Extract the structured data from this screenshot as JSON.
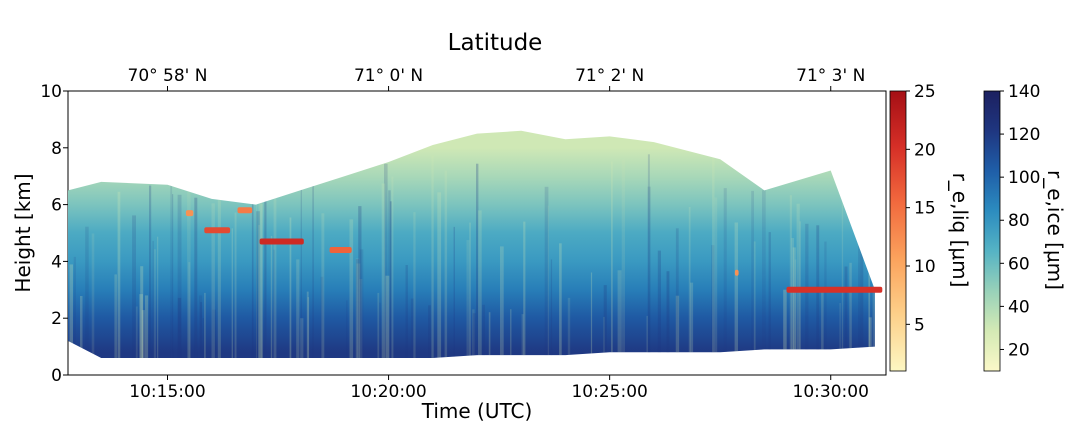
{
  "chart_data": {
    "type": "heatmap",
    "title": "Latitude",
    "xlabel": "Time (UTC)",
    "ylabel": "Height [km]",
    "xlim": [
      "10:12:45",
      "10:31:15"
    ],
    "ylim": [
      0,
      10
    ],
    "x_ticks": [
      "10:15:00",
      "10:20:00",
      "10:25:00",
      "10:30:00"
    ],
    "y_ticks": [
      0,
      2,
      4,
      6,
      8,
      10
    ],
    "top_axis_ticks": [
      "70° 58' N",
      "71° 0' N",
      "71° 2' N",
      "71° 3' N"
    ],
    "cloud_extent": [
      {
        "time": "10:12:45",
        "base_km": 1.2,
        "top_km": 6.5
      },
      {
        "time": "10:13:30",
        "base_km": 0.6,
        "top_km": 6.8
      },
      {
        "time": "10:15:00",
        "base_km": 0.6,
        "top_km": 6.7
      },
      {
        "time": "10:16:00",
        "base_km": 0.6,
        "top_km": 6.2
      },
      {
        "time": "10:17:00",
        "base_km": 0.6,
        "top_km": 6.0
      },
      {
        "time": "10:18:00",
        "base_km": 0.6,
        "top_km": 6.5
      },
      {
        "time": "10:19:00",
        "base_km": 0.6,
        "top_km": 7.0
      },
      {
        "time": "10:20:00",
        "base_km": 0.6,
        "top_km": 7.5
      },
      {
        "time": "10:21:00",
        "base_km": 0.6,
        "top_km": 8.1
      },
      {
        "time": "10:22:00",
        "base_km": 0.7,
        "top_km": 8.5
      },
      {
        "time": "10:23:00",
        "base_km": 0.7,
        "top_km": 8.6
      },
      {
        "time": "10:24:00",
        "base_km": 0.7,
        "top_km": 8.3
      },
      {
        "time": "10:25:00",
        "base_km": 0.8,
        "top_km": 8.4
      },
      {
        "time": "10:26:00",
        "base_km": 0.8,
        "top_km": 8.2
      },
      {
        "time": "10:27:30",
        "base_km": 0.8,
        "top_km": 7.6
      },
      {
        "time": "10:28:30",
        "base_km": 0.9,
        "top_km": 6.5
      },
      {
        "time": "10:30:00",
        "base_km": 0.9,
        "top_km": 7.2
      },
      {
        "time": "10:31:00",
        "base_km": 1.0,
        "top_km": 3.0
      }
    ],
    "ice_column_profile": [
      {
        "height_km": 0.8,
        "re_ice_um": 120
      },
      {
        "height_km": 2.0,
        "re_ice_um": 105
      },
      {
        "height_km": 3.0,
        "re_ice_um": 90
      },
      {
        "height_km": 4.0,
        "re_ice_um": 78
      },
      {
        "height_km": 5.0,
        "re_ice_um": 70
      },
      {
        "height_km": 6.0,
        "re_ice_um": 55
      },
      {
        "height_km": 7.0,
        "re_ice_um": 42
      },
      {
        "height_km": 8.0,
        "re_ice_um": 30
      }
    ],
    "liquid_layers": [
      {
        "t_start": "10:15:25",
        "t_end": "10:15:35",
        "height_km": 5.7,
        "re_liq_um": 12
      },
      {
        "t_start": "10:15:50",
        "t_end": "10:16:25",
        "height_km": 5.1,
        "re_liq_um": 18
      },
      {
        "t_start": "10:16:35",
        "t_end": "10:16:55",
        "height_km": 5.8,
        "re_liq_um": 14
      },
      {
        "t_start": "10:17:05",
        "t_end": "10:18:05",
        "height_km": 4.7,
        "re_liq_um": 21
      },
      {
        "t_start": "10:18:40",
        "t_end": "10:19:10",
        "height_km": 4.4,
        "re_liq_um": 16
      },
      {
        "t_start": "10:27:50",
        "t_end": "10:27:55",
        "height_km": 3.6,
        "re_liq_um": 12
      },
      {
        "t_start": "10:29:00",
        "t_end": "10:31:10",
        "height_km": 3.0,
        "re_liq_um": 20
      }
    ],
    "colorbars": [
      {
        "label": "r_e,liq [μm]",
        "ticks": [
          5,
          10,
          15,
          20,
          25
        ],
        "range": [
          1,
          25
        ],
        "colors": [
          "#fdf7c2",
          "#fdd08a",
          "#fba35d",
          "#f26a3e",
          "#d62f27",
          "#a50f15"
        ]
      },
      {
        "label": "r_e,ice [μm]",
        "ticks": [
          20,
          40,
          60,
          80,
          100,
          120,
          140
        ],
        "range": [
          10,
          140
        ],
        "colors": [
          "#fbf8c8",
          "#d4eab5",
          "#98d1b9",
          "#55b3c4",
          "#2c8cbf",
          "#1f5ea8",
          "#1f3680",
          "#1c2060"
        ]
      }
    ]
  }
}
